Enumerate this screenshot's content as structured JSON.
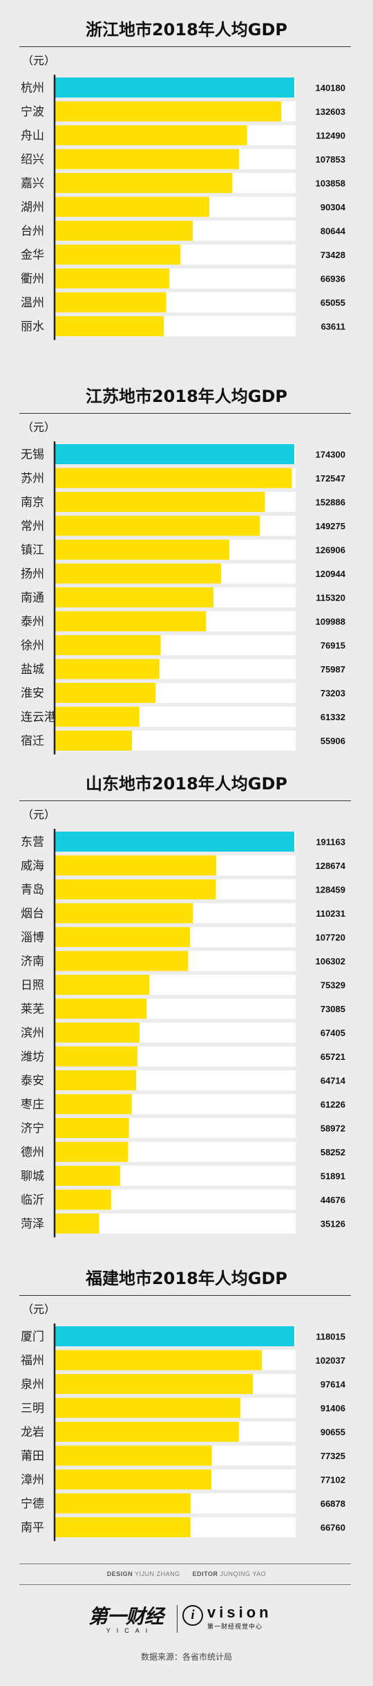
{
  "colors": {
    "highlight": "#16cce0",
    "bar": "#ffe000",
    "track": "#ffffff",
    "axis": "#222222"
  },
  "chart_data": [
    {
      "type": "bar",
      "title": "浙江地市2018年人均GDP",
      "unit": "（元）",
      "categories": [
        "杭州",
        "宁波",
        "舟山",
        "绍兴",
        "嘉兴",
        "湖州",
        "台州",
        "金华",
        "衢州",
        "温州",
        "丽水"
      ],
      "values": [
        140180,
        132603,
        112490,
        107853,
        103858,
        90304,
        80644,
        73428,
        66936,
        65055,
        63611
      ],
      "highlight_index": 0
    },
    {
      "type": "bar",
      "title": "江苏地市2018年人均GDP",
      "unit": "（元）",
      "categories": [
        "无锡",
        "苏州",
        "南京",
        "常州",
        "镇江",
        "扬州",
        "南通",
        "泰州",
        "徐州",
        "盐城",
        "淮安",
        "连云港",
        "宿迁"
      ],
      "values": [
        174300,
        172547,
        152886,
        149275,
        126906,
        120944,
        115320,
        109988,
        76915,
        75987,
        73203,
        61332,
        55906
      ],
      "highlight_index": 0
    },
    {
      "type": "bar",
      "title": "山东地市2018年人均GDP",
      "unit": "（元）",
      "categories": [
        "东营",
        "威海",
        "青岛",
        "烟台",
        "淄博",
        "济南",
        "日照",
        "莱芜",
        "滨州",
        "潍坊",
        "泰安",
        "枣庄",
        "济宁",
        "德州",
        "聊城",
        "临沂",
        "菏泽"
      ],
      "values": [
        191163,
        128674,
        128459,
        110231,
        107720,
        106302,
        75329,
        73085,
        67405,
        65721,
        64714,
        61226,
        58972,
        58252,
        51891,
        44676,
        35126
      ],
      "highlight_index": 0
    },
    {
      "type": "bar",
      "title": "福建地市2018年人均GDP",
      "unit": "（元）",
      "categories": [
        "厦门",
        "福州",
        "泉州",
        "三明",
        "龙岩",
        "莆田",
        "漳州",
        "宁德",
        "南平"
      ],
      "values": [
        118015,
        102037,
        97614,
        91406,
        90655,
        77325,
        77102,
        66878,
        66760
      ],
      "highlight_index": 0
    }
  ],
  "footer": {
    "design_label": "DESIGN",
    "design_name": "YIJUN ZHANG",
    "editor_label": "EDITOR",
    "editor_name": "JUNQING YAO",
    "logo_cn": "第一财经",
    "logo_en": "YICAI",
    "vision_i": "i",
    "vision_word": "vision",
    "vision_sub": "第一财经视觉中心",
    "source": "数据来源：各省市统计局"
  }
}
